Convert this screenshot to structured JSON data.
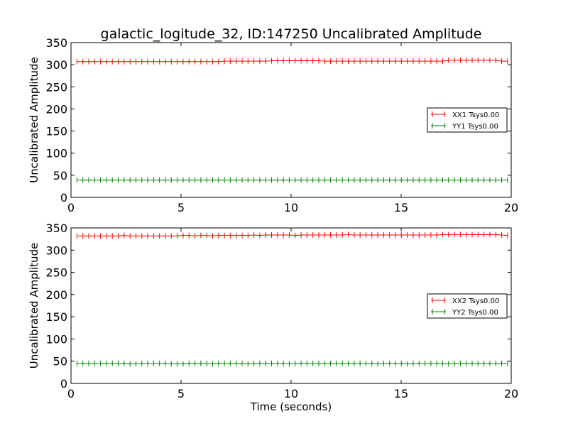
{
  "chart_data": [
    {
      "type": "line",
      "title": "galactic_logitude_32, ID:147250 Uncalibrated Amplitude",
      "xlabel": "",
      "ylabel": "Uncalibrated Amplitude",
      "xlim": [
        0,
        20
      ],
      "ylim": [
        0,
        350
      ],
      "xticks": [
        "0",
        "5",
        "10",
        "15",
        "20"
      ],
      "yticks": [
        "0",
        "50",
        "100",
        "150",
        "200",
        "250",
        "300",
        "350"
      ],
      "legend_position": "center-right",
      "x_start": 0.27,
      "x_step": 0.268,
      "series": [
        {
          "name": "XX1 Tsys0.00",
          "color": "#ff0000",
          "values": [
            307,
            307,
            307,
            307,
            307,
            307,
            307,
            307,
            307,
            307,
            307,
            307,
            307,
            307,
            307,
            307,
            307,
            307,
            307,
            307,
            307,
            307,
            307,
            307,
            307,
            308,
            308,
            308,
            308,
            308,
            308,
            308,
            308,
            309,
            309,
            309,
            309,
            309,
            309,
            309,
            309,
            309,
            308,
            308,
            308,
            308,
            308,
            308,
            308,
            308,
            308,
            308,
            308,
            308,
            308,
            308,
            308,
            308,
            308,
            308,
            308,
            308,
            308,
            310,
            310,
            310,
            310,
            310,
            310,
            310,
            310,
            310,
            308,
            308
          ]
        },
        {
          "name": "YY1 Tsys0.00",
          "color": "#008000",
          "values": [
            39,
            39,
            39,
            39,
            39,
            39,
            39,
            39,
            39,
            39,
            39,
            39,
            39,
            39,
            39,
            39,
            39,
            39,
            39,
            39,
            39,
            39,
            39,
            39,
            39,
            39,
            39,
            39,
            39,
            39,
            39,
            39,
            39,
            39,
            39,
            39,
            39,
            39,
            39,
            39,
            39,
            39,
            39,
            39,
            39,
            39,
            39,
            39,
            39,
            39,
            39,
            39,
            39,
            39,
            39,
            39,
            39,
            39,
            39,
            39,
            39,
            39,
            39,
            39,
            39,
            39,
            39,
            39,
            39,
            39,
            39,
            39,
            39,
            39
          ]
        }
      ]
    },
    {
      "type": "line",
      "xlabel": "Time (seconds)",
      "ylabel": "Uncalibrated Amplitude",
      "xlim": [
        0,
        20
      ],
      "ylim": [
        0,
        350
      ],
      "xticks": [
        "0",
        "5",
        "10",
        "15",
        "20"
      ],
      "yticks": [
        "0",
        "50",
        "100",
        "150",
        "200",
        "250",
        "300",
        "350"
      ],
      "legend_position": "center-right",
      "x_start": 0.27,
      "x_step": 0.268,
      "series": [
        {
          "name": "XX2 Tsys0.00",
          "color": "#ff0000",
          "values": [
            332,
            332,
            332,
            332,
            332,
            332,
            332,
            332,
            333,
            332,
            332,
            332,
            332,
            332,
            332,
            332,
            332,
            332,
            333,
            333,
            332,
            333,
            333,
            332,
            333,
            333,
            333,
            333,
            333,
            333,
            334,
            333,
            334,
            334,
            334,
            334,
            334,
            333,
            334,
            334,
            334,
            334,
            334,
            334,
            334,
            334,
            335,
            334,
            334,
            334,
            334,
            334,
            334,
            334,
            334,
            334,
            334,
            334,
            334,
            334,
            334,
            334,
            335,
            335,
            335,
            335,
            335,
            335,
            335,
            335,
            335,
            335,
            334,
            333
          ]
        },
        {
          "name": "YY2 Tsys0.00",
          "color": "#008000",
          "values": [
            45,
            45,
            45,
            45,
            45,
            45,
            45,
            45,
            45,
            44,
            44,
            45,
            45,
            45,
            45,
            45,
            44,
            44,
            44,
            45,
            45,
            45,
            45,
            44,
            45,
            45,
            45,
            45,
            45,
            44,
            45,
            45,
            45,
            45,
            45,
            45,
            44,
            45,
            45,
            45,
            45,
            45,
            45,
            45,
            45,
            45,
            45,
            45,
            45,
            45,
            45,
            44,
            45,
            45,
            45,
            45,
            44,
            45,
            45,
            45,
            45,
            45,
            45,
            44,
            45,
            45,
            45,
            45,
            45,
            45,
            45,
            45,
            45,
            45
          ]
        }
      ]
    }
  ]
}
